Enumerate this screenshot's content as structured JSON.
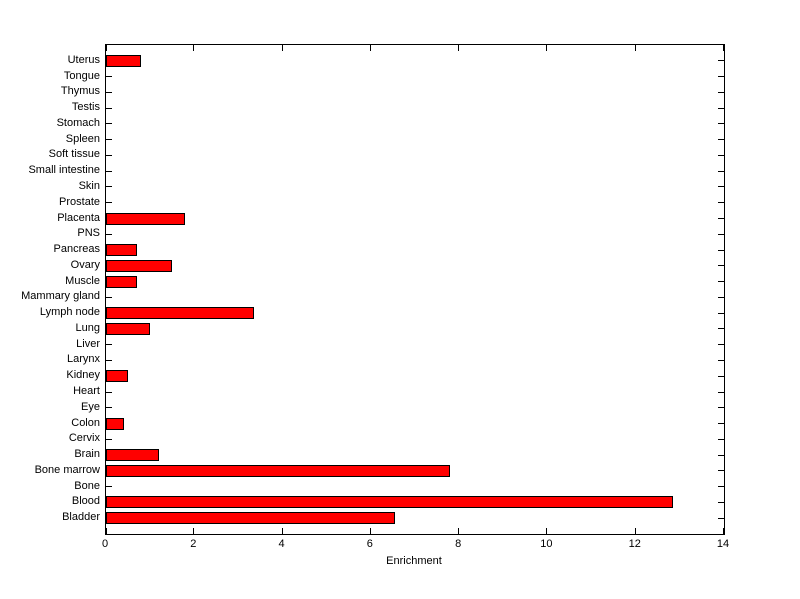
{
  "chart_data": {
    "type": "bar",
    "orientation": "horizontal",
    "title": "",
    "xlabel": "Enrichment",
    "ylabel": "",
    "categories": [
      "Uterus",
      "Tongue",
      "Thymus",
      "Testis",
      "Stomach",
      "Spleen",
      "Soft tissue",
      "Small intestine",
      "Skin",
      "Prostate",
      "Placenta",
      "PNS",
      "Pancreas",
      "Ovary",
      "Muscle",
      "Mammary gland",
      "Lymph node",
      "Lung",
      "Liver",
      "Larynx",
      "Kidney",
      "Heart",
      "Eye",
      "Colon",
      "Cervix",
      "Brain",
      "Bone marrow",
      "Bone",
      "Blood",
      "Bladder"
    ],
    "values": [
      0.8,
      0,
      0,
      0,
      0,
      0,
      0,
      0,
      0,
      0,
      1.8,
      0,
      0.7,
      1.5,
      0.7,
      0,
      3.35,
      1.0,
      0,
      0,
      0.5,
      0,
      0,
      0.4,
      0,
      1.2,
      7.8,
      0,
      12.85,
      6.55
    ],
    "categories_order_note": "listed top-to-bottom as displayed",
    "xlim": [
      0,
      14
    ],
    "xticks": [
      0,
      2,
      4,
      6,
      8,
      10,
      12,
      14
    ],
    "grid": false,
    "legend": null,
    "box": true,
    "tick_direction": "in",
    "colors": {
      "bar_fill": "#ff0000",
      "bar_edge": "#000000",
      "axis": "#000000",
      "text": "#000000",
      "background": "#ffffff"
    }
  }
}
